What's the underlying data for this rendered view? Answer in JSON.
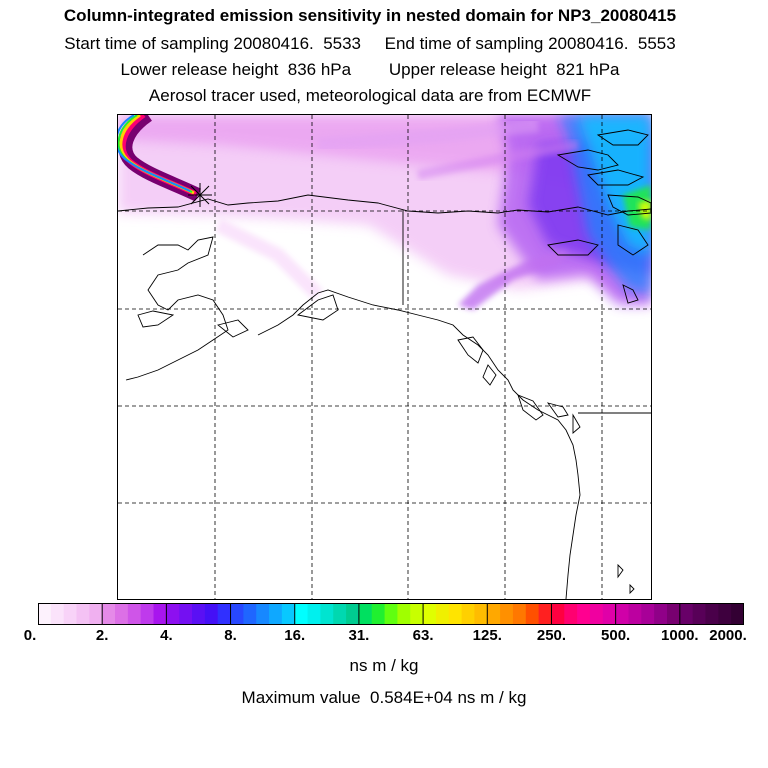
{
  "header": {
    "title": "Column-integrated emission sensitivity in nested domain for NP3_20080415",
    "sampling_line": "Start time of sampling 20080416.  5533     End time of sampling 20080416.  5553",
    "release_line": "Lower release height  836 hPa        Upper release height  821 hPa",
    "tracer_line": "Aerosol tracer used, meteorological data are from ECMWF"
  },
  "map": {
    "release_marker": "star-cross",
    "grid": "dashed",
    "coastline_color": "#000000"
  },
  "colorbar": {
    "labels": [
      "0.",
      "2.",
      "4.",
      "8.",
      "16.",
      "31.",
      "63.",
      "125.",
      "250.",
      "500.",
      "1000.",
      "2000."
    ],
    "colors": [
      [
        "#fdf2fd",
        "#fbe3fb",
        "#f8d3f8",
        "#f4c2f4",
        "#f0b0f0"
      ],
      [
        "#e58ae8",
        "#dc70e6",
        "#cf55e8",
        "#bf3aec",
        "#a815ee"
      ],
      [
        "#8d10f0",
        "#7410f2",
        "#5a10f4",
        "#4410f6",
        "#3030ff"
      ],
      [
        "#2848ff",
        "#1f66ff",
        "#1788ff",
        "#0fa8ff",
        "#08c8ff"
      ],
      [
        "#00ffff",
        "#00f0ee",
        "#00e4d0",
        "#00d8b0",
        "#00cc90"
      ],
      [
        "#00e060",
        "#20f030",
        "#60ff10",
        "#a0ff00",
        "#c8ff00"
      ],
      [
        "#e0ff00",
        "#f0f000",
        "#ffe400",
        "#ffd000",
        "#ffbc00"
      ],
      [
        "#ffa800",
        "#ff9000",
        "#ff7800",
        "#ff5000",
        "#ff2020"
      ],
      [
        "#ff0040",
        "#ff0070",
        "#ff0090",
        "#f000a0",
        "#e000a8"
      ],
      [
        "#d000a8",
        "#bc00a0",
        "#a80098",
        "#900088",
        "#780070"
      ],
      [
        "#680068",
        "#580058",
        "#4a004a",
        "#3e003e",
        "#330033"
      ]
    ],
    "unit": "ns m / kg",
    "max_value_line": "Maximum value  0.584E+04 ns m / kg"
  }
}
